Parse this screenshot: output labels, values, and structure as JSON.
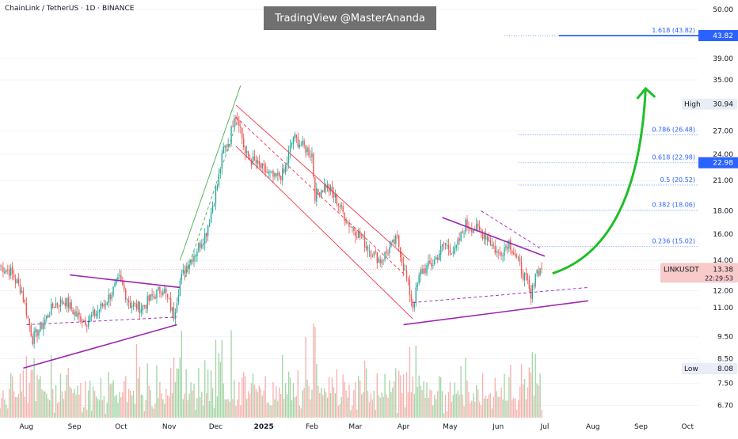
{
  "header": {
    "title": "ChainLink / TetherUS · 1D · BINANCE",
    "watermark": "TradingView @MasterAnanda"
  },
  "colors": {
    "up_candle": "#26a69a",
    "down_candle": "#ef5350",
    "wedge_line": "#9c27b0",
    "channel_line": "#f23645",
    "uptrend_line": "#4caf50",
    "projection_arrow": "#1fbf28",
    "fib_line": "#2962ff",
    "volume_up": "#a5d6a7",
    "volume_down": "#f7b3b0"
  },
  "chart_data": {
    "type": "candlestick",
    "symbol": "LINKUSDT",
    "exchange": "BINANCE",
    "timeframe": "1D",
    "scale": "log",
    "y_ticks": [
      "50.00",
      "43.82",
      "39.00",
      "35.00",
      "30.94",
      "27.00",
      "24.00",
      "22.98",
      "21.00",
      "18.00",
      "16.00",
      "14.00",
      "13.38",
      "12.00",
      "11.00",
      "9.50",
      "8.50",
      "8.08",
      "7.50",
      "6.70"
    ],
    "y_tick_values": [
      50,
      39,
      35,
      27,
      24,
      21,
      18,
      16,
      14,
      12,
      11,
      9.5,
      8.5,
      7.5,
      6.7
    ],
    "x_ticks": [
      "Aug",
      "Sep",
      "Oct",
      "Nov",
      "Dec",
      "2025",
      "Feb",
      "Mar",
      "Apr",
      "May",
      "Jun",
      "Jul",
      "Aug",
      "Sep",
      "Oct"
    ],
    "x_tick_dates": [
      "2024-08-01",
      "2024-09-01",
      "2024-10-01",
      "2024-11-01",
      "2024-12-01",
      "2025-01-01",
      "2025-02-01",
      "2025-03-01",
      "2025-04-01",
      "2025-05-01",
      "2025-06-01",
      "2025-07-01",
      "2025-08-01",
      "2025-09-01",
      "2025-10-01"
    ],
    "price_path": [
      [
        "2024-07-15",
        13.6
      ],
      [
        "2024-07-22",
        13.2
      ],
      [
        "2024-07-29",
        12.0
      ],
      [
        "2024-08-05",
        9.4
      ],
      [
        "2024-08-12",
        10.2
      ],
      [
        "2024-08-19",
        11.2
      ],
      [
        "2024-08-26",
        11.4
      ],
      [
        "2024-09-02",
        10.6
      ],
      [
        "2024-09-09",
        10.3
      ],
      [
        "2024-09-16",
        10.8
      ],
      [
        "2024-09-23",
        11.6
      ],
      [
        "2024-09-30",
        12.7
      ],
      [
        "2024-10-07",
        11.2
      ],
      [
        "2024-10-14",
        11.0
      ],
      [
        "2024-10-21",
        11.6
      ],
      [
        "2024-10-28",
        12.2
      ],
      [
        "2024-11-04",
        10.6
      ],
      [
        "2024-11-08",
        12.6
      ],
      [
        "2024-11-12",
        13.6
      ],
      [
        "2024-11-18",
        14.6
      ],
      [
        "2024-11-25",
        16.2
      ],
      [
        "2024-12-02",
        20.5
      ],
      [
        "2024-12-06",
        24.6
      ],
      [
        "2024-12-10",
        25.8
      ],
      [
        "2024-12-13",
        29.6
      ],
      [
        "2024-12-16",
        28.5
      ],
      [
        "2024-12-20",
        24.0
      ],
      [
        "2024-12-26",
        23.0
      ],
      [
        "2025-01-02",
        22.0
      ],
      [
        "2025-01-08",
        21.2
      ],
      [
        "2025-01-14",
        21.8
      ],
      [
        "2025-01-20",
        26.2
      ],
      [
        "2025-01-26",
        25.0
      ],
      [
        "2025-02-01",
        24.0
      ],
      [
        "2025-02-03",
        19.5
      ],
      [
        "2025-02-10",
        20.5
      ],
      [
        "2025-02-17",
        19.0
      ],
      [
        "2025-02-24",
        17.0
      ],
      [
        "2025-03-03",
        16.0
      ],
      [
        "2025-03-10",
        14.8
      ],
      [
        "2025-03-17",
        14.0
      ],
      [
        "2025-03-24",
        15.0
      ],
      [
        "2025-03-28",
        15.6
      ],
      [
        "2025-04-07",
        11.1
      ],
      [
        "2025-04-12",
        13.2
      ],
      [
        "2025-04-20",
        13.8
      ],
      [
        "2025-04-27",
        15.2
      ],
      [
        "2025-05-04",
        14.6
      ],
      [
        "2025-05-11",
        16.8
      ],
      [
        "2025-05-18",
        16.4
      ],
      [
        "2025-05-25",
        15.8
      ],
      [
        "2025-06-01",
        14.4
      ],
      [
        "2025-06-08",
        15.4
      ],
      [
        "2025-06-15",
        13.6
      ],
      [
        "2025-06-20",
        12.4
      ],
      [
        "2025-06-22",
        11.5
      ],
      [
        "2025-06-25",
        13.2
      ],
      [
        "2025-06-29",
        13.38
      ]
    ],
    "wedge_lines": [
      {
        "from": [
          "2024-07-30",
          8.1
        ],
        "to": [
          "2024-11-06",
          10.1
        ]
      },
      {
        "from": [
          "2024-08-29",
          13.0
        ],
        "to": [
          "2024-11-08",
          12.2
        ]
      },
      {
        "from": [
          "2025-04-01",
          10.1
        ],
        "to": [
          "2025-07-29",
          11.4
        ]
      },
      {
        "from": [
          "2025-04-26",
          17.4
        ],
        "to": [
          "2025-07-01",
          14.3
        ]
      }
    ],
    "dashed_lines": [
      {
        "from": [
          "2024-08-01",
          10.1
        ],
        "to": [
          "2024-11-06",
          10.5
        ]
      },
      {
        "from": [
          "2025-04-07",
          11.3
        ],
        "to": [
          "2025-07-29",
          12.2
        ]
      },
      {
        "from": [
          "2025-05-21",
          18.0
        ],
        "to": [
          "2025-06-28",
          14.9
        ]
      }
    ],
    "channel_lines": [
      {
        "from": [
          "2024-12-14",
          30.8
        ],
        "to": [
          "2025-04-05",
          14.0
        ]
      },
      {
        "from": [
          "2024-12-14",
          25.0
        ],
        "to": [
          "2025-04-07",
          10.4
        ]
      },
      {
        "from": [
          "2024-12-14",
          29.0
        ],
        "to": [
          "2025-04-02",
          13.0
        ]
      }
    ],
    "uptrend_lines": [
      {
        "from": [
          "2024-11-08",
          14.0
        ],
        "to": [
          "2024-12-17",
          34.0
        ]
      },
      {
        "from": [
          "2024-11-11",
          12.8
        ],
        "to": [
          "2024-12-15",
          28.5
        ]
      }
    ],
    "projection_arrow": {
      "from": [
        "2025-07-06",
        13.1
      ],
      "to": [
        "2025-09-04",
        33.5
      ]
    },
    "fib_levels": [
      {
        "label": "1.618 (43.82)",
        "value": 43.82
      },
      {
        "label": "0.786 (26.48)",
        "value": 26.48
      },
      {
        "label": "0.618 (22.98)",
        "value": 22.98
      },
      {
        "label": "0.5 (20.52)",
        "value": 20.52
      },
      {
        "label": "0.382 (18.06)",
        "value": 18.06
      },
      {
        "label": "0.236 (15.02)",
        "value": 15.02
      }
    ],
    "badges": [
      {
        "label": "High",
        "value": "30.94",
        "price": 30.94
      },
      {
        "label": "Low",
        "value": "8.08",
        "price": 8.08
      }
    ],
    "last_price": {
      "symbol": "LINKUSDT",
      "value": "13.38",
      "countdown": "22:29:53",
      "price": 13.38
    },
    "highlight_price": "43.82",
    "fib_price_tag": "22.98",
    "x_start": "2024-07-15",
    "x_end": "2025-10-08",
    "y_min": 6.3,
    "y_max": 52.5
  }
}
